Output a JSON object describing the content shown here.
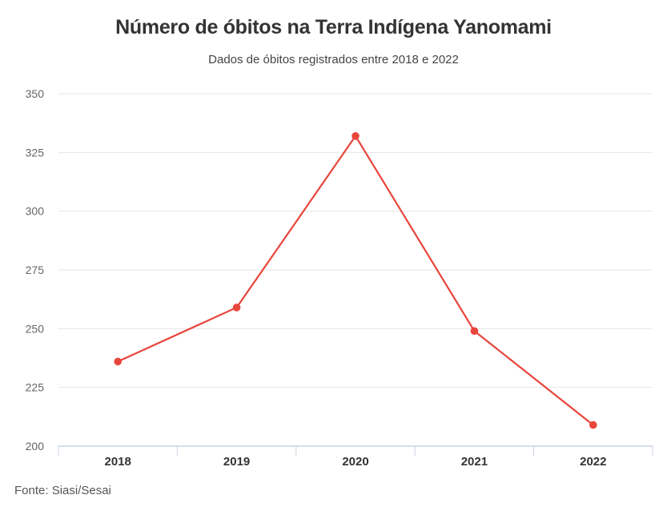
{
  "chart_data": {
    "type": "line",
    "title": "Número de óbitos na Terra Indígena Yanomami",
    "subtitle": "Dados de óbitos registrados entre 2018 e 2022",
    "categories": [
      "2018",
      "2019",
      "2020",
      "2021",
      "2022"
    ],
    "series": [
      {
        "values": [
          236,
          259,
          332,
          249,
          209
        ]
      }
    ],
    "ylim": [
      200,
      350
    ],
    "yticks": [
      200,
      225,
      250,
      275,
      300,
      325,
      350
    ],
    "grid": true,
    "legend": "none",
    "color": "#e8453c",
    "source": "Fonte: Siasi/Sesai"
  }
}
